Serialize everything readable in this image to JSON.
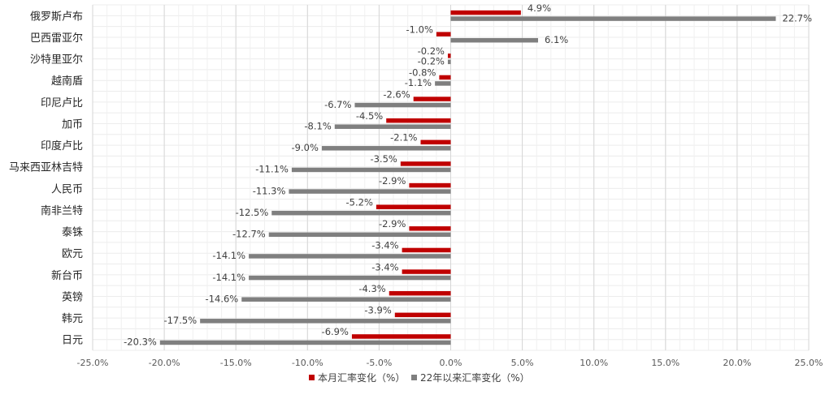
{
  "chart_data": {
    "type": "bar",
    "orientation": "horizontal",
    "categories": [
      "俄罗斯卢布",
      "巴西雷亚尔",
      "沙特里亚尔",
      "越南盾",
      "印尼卢比",
      "加币",
      "印度卢比",
      "马来西亚林吉特",
      "人民币",
      "南非兰特",
      "泰铢",
      "欧元",
      "新台币",
      "英镑",
      "韩元",
      "日元"
    ],
    "series": [
      {
        "name": "本月汇率变化（%）",
        "color": "#c00000",
        "values": [
          4.9,
          -1.0,
          -0.2,
          -0.8,
          -2.6,
          -4.5,
          -2.1,
          -3.5,
          -2.9,
          -5.2,
          -2.9,
          -3.4,
          -3.4,
          -4.3,
          -3.9,
          -6.9
        ],
        "labels": [
          "4.9%",
          "-1.0%",
          "-0.2%",
          "-0.8%",
          "-2.6%",
          "-4.5%",
          "-2.1%",
          "-3.5%",
          "-2.9%",
          "-5.2%",
          "-2.9%",
          "-3.4%",
          "-3.4%",
          "-4.3%",
          "-3.9%",
          "-6.9%"
        ]
      },
      {
        "name": "22年以来汇率变化（%）",
        "color": "#7f7f7f",
        "values": [
          22.7,
          6.1,
          -0.2,
          -1.1,
          -6.7,
          -8.1,
          -9.0,
          -11.1,
          -11.3,
          -12.5,
          -12.7,
          -14.1,
          -14.1,
          -14.6,
          -17.5,
          -20.3
        ],
        "labels": [
          "22.7%",
          "6.1%",
          "-0.2%",
          "-1.1%",
          "-6.7%",
          "-8.1%",
          "-9.0%",
          "-11.1%",
          "-11.3%",
          "-12.5%",
          "-12.7%",
          "-14.1%",
          "-14.1%",
          "-14.6%",
          "-17.5%",
          "-20.3%"
        ]
      }
    ],
    "xlim": [
      -25,
      25
    ],
    "xticks": [
      -25,
      -20,
      -15,
      -10,
      -5,
      0,
      5,
      10,
      15,
      20,
      25
    ],
    "xtick_labels": [
      "-25.0%",
      "-20.0%",
      "-15.0%",
      "-10.0%",
      "-5.0%",
      "0.0%",
      "5.0%",
      "10.0%",
      "15.0%",
      "20.0%",
      "25.0%"
    ],
    "grid": true,
    "legend": "bottom"
  }
}
